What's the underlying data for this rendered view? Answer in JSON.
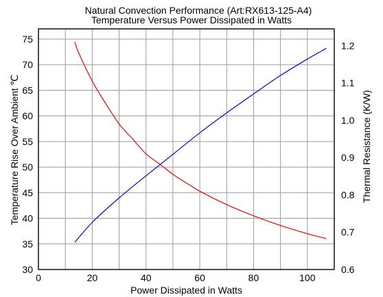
{
  "chart_data": {
    "type": "line",
    "title": "Natural Convection Performance  (Art:RX613-125-A4)",
    "subtitle": "Temperature Versus Power Dissipated in Watts",
    "xlabel": "Power  Dissipated in Watts",
    "ylabel_left": "Temperature Rise Over Ambient ℃",
    "ylabel_right": "Thermal Resistance (K/W)",
    "xlim": [
      0,
      110
    ],
    "ylim_left": [
      30,
      77
    ],
    "ylim_right": [
      0.6,
      1.245
    ],
    "x_ticks": [
      "0",
      "20",
      "40",
      "60",
      "80",
      "100"
    ],
    "y_left_ticks": [
      "30",
      "35",
      "40",
      "45",
      "50",
      "55",
      "60",
      "65",
      "70",
      "75"
    ],
    "y_right_ticks": [
      "0.6",
      "0.7",
      "0.8",
      "0.9",
      "1.0",
      "1.1",
      "1.2"
    ],
    "grid": true,
    "series": [
      {
        "axis": "left",
        "color": "#0000ff",
        "x": [
          13.5,
          20,
          30,
          40,
          50,
          60,
          70,
          80,
          90,
          100,
          107
        ],
        "values": [
          35.3,
          39.2,
          44.0,
          48.3,
          52.5,
          56.7,
          60.6,
          64.3,
          67.9,
          71.1,
          73.2
        ]
      },
      {
        "axis": "right",
        "color": "#ff0000",
        "x": [
          13.5,
          15,
          20,
          25,
          30,
          35,
          40,
          45,
          50,
          55,
          60,
          70,
          80,
          90,
          100,
          107
        ],
        "values": [
          1.21,
          1.18,
          1.105,
          1.045,
          0.99,
          0.95,
          0.91,
          0.883,
          0.855,
          0.832,
          0.81,
          0.774,
          0.744,
          0.718,
          0.696,
          0.683
        ]
      }
    ]
  }
}
